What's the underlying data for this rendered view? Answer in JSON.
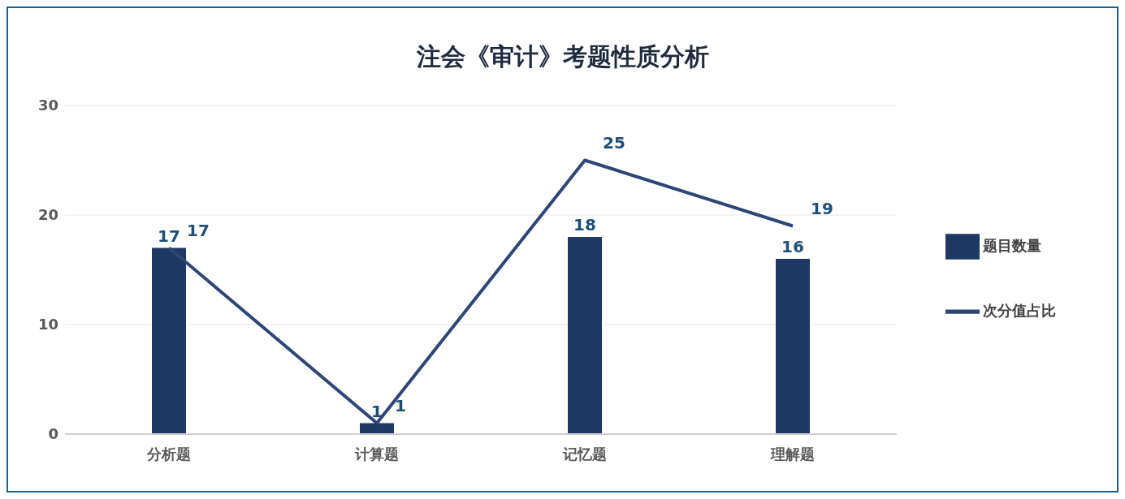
{
  "chart_data": {
    "type": "bar",
    "title": "注会《审计》考题性质分析",
    "categories": [
      "分析题",
      "计算题",
      "记忆题",
      "理解题"
    ],
    "series": [
      {
        "name": "题目数量",
        "color": "#1f3864",
        "values": [
          17,
          1,
          18,
          16
        ]
      },
      {
        "name": "次分值占比",
        "type": "line",
        "color": "#2e4575",
        "values": [
          17,
          1,
          25,
          19
        ]
      }
    ],
    "ylim": [
      0,
      30
    ],
    "yticks": [
      0,
      10,
      20,
      30
    ],
    "grid": "y",
    "legend": "right",
    "data_labels": true,
    "marker": "none",
    "line_style": "solid"
  }
}
